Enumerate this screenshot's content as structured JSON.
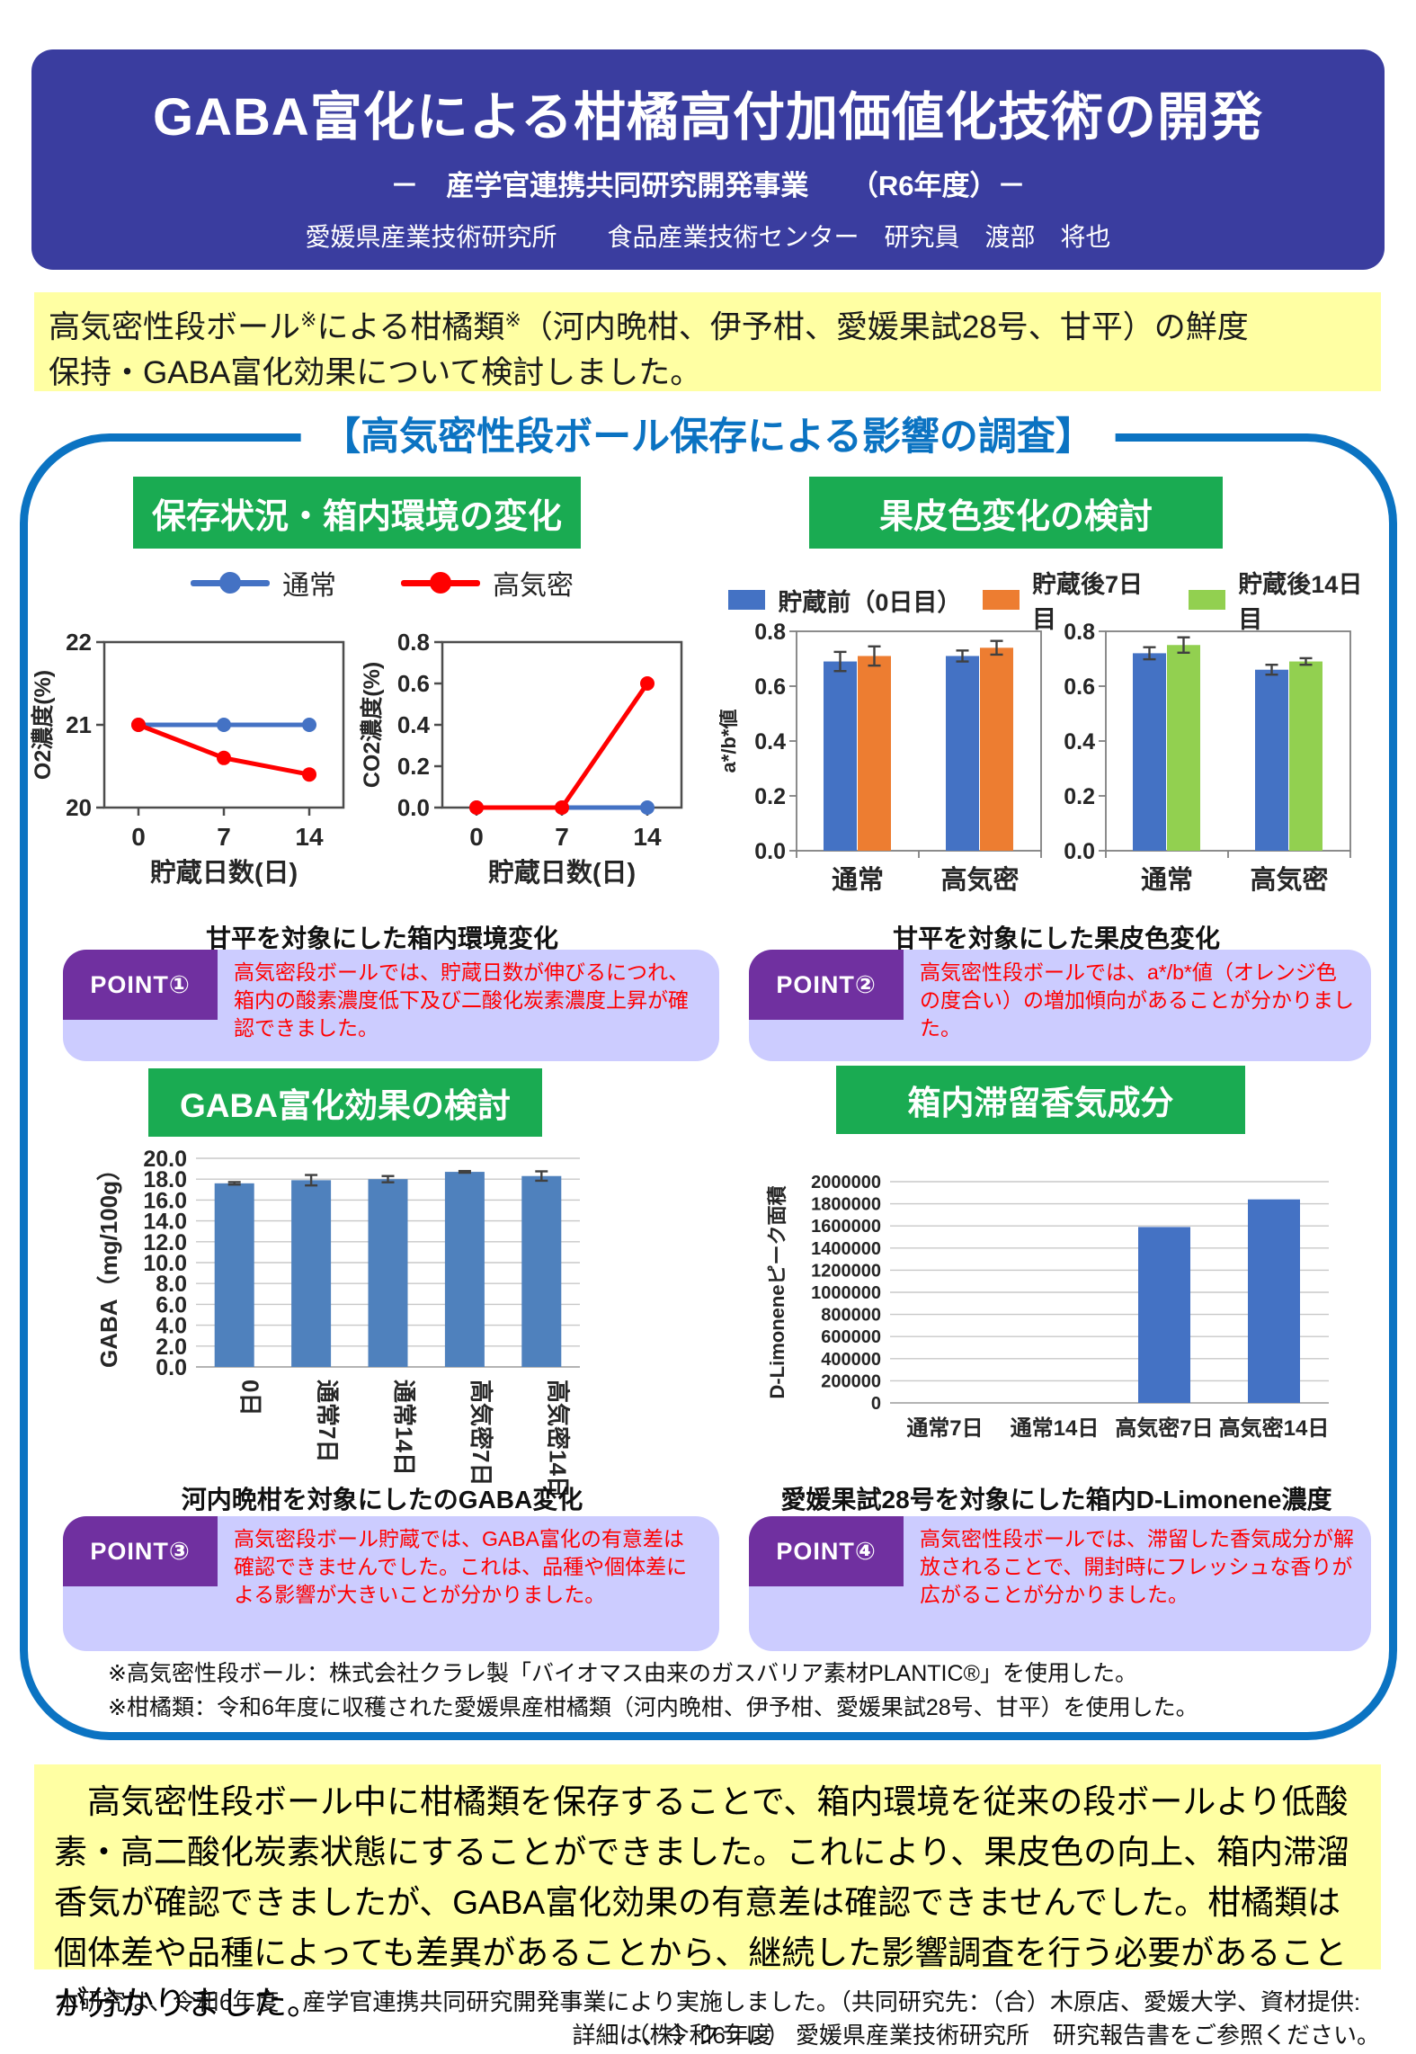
{
  "header": {
    "title": "GABA富化による柑橘高付加価値化技術の開発",
    "subtitle": "－　産学官連携共同研究開発事業　　（R6年度）－",
    "affiliation": "愛媛県産業技術研究所　　食品産業技術センター　研究員　渡部　将也",
    "bg_color": "#3A3D9F"
  },
  "intro": {
    "p1": "高気密性段ボール",
    "sup1": "※",
    "p2": "による柑橘類",
    "sup2": "※",
    "p3": "（河内晩柑、伊予柑、愛媛果試28号、甘平）の鮮度",
    "line2": "保持・GABA富化効果について検討しました。"
  },
  "survey": {
    "title": "【高気密性段ボール保存による影響の調査】",
    "border_color": "#0B73C2",
    "sections": {
      "env": {
        "header": "保存状況・箱内環境の変化",
        "caption": "甘平を対象にした箱内環境変化"
      },
      "peel": {
        "header": "果皮色変化の検討",
        "caption": "甘平を対象にした果皮色変化"
      },
      "gaba": {
        "header": "GABA富化効果の検討",
        "caption": "河内晩柑を対象にしたのGABA変化"
      },
      "aroma": {
        "header": "箱内滞留香気成分",
        "caption": "愛媛果試28号を対象にした箱内D-Limonene濃度"
      }
    },
    "line_legend": [
      {
        "label": "通常",
        "color": "#4472C4"
      },
      {
        "label": "高気密",
        "color": "#FF0000"
      }
    ],
    "bar_legend": [
      {
        "label": "貯蔵前（0日目）",
        "color": "#4472C4"
      },
      {
        "label": "貯蔵後7日目",
        "color": "#ED7D31"
      },
      {
        "label": "貯蔵後14日目",
        "color": "#92D050"
      }
    ],
    "points": [
      {
        "label": "POINT①",
        "text": "高気密段ボールでは、貯蔵日数が伸びるにつれ、箱内の酸素濃度低下及び二酸化炭素濃度上昇が確認できました。"
      },
      {
        "label": "POINT②",
        "text": "高気密性段ボールでは、a*/b*値（オレンジ色の度合い）の増加傾向があることが分かりました。"
      },
      {
        "label": "POINT③",
        "text": "高気密段ボール貯蔵では、GABA富化の有意差は確認できませんでした。これは、品種や個体差による影響が大きいことが分かりました。"
      },
      {
        "label": "POINT④",
        "text": "高気密性段ボールでは、滞留した香気成分が解放されることで、開封時にフレッシュな香りが広がることが分かりました。"
      }
    ]
  },
  "footnotes": [
    "※高気密性段ボール：株式会社クラレ製「バイオマス由来のガスバリア素材PLANTIC®」を使用した。",
    "※柑橘類：令和6年度に収穫された愛媛県産柑橘類（河内晩柑、伊予柑、愛媛果試28号、甘平）を使用した。"
  ],
  "summary": "　高気密性段ボール中に柑橘類を保存することで、箱内環境を従来の段ボールより低酸素・高二酸化炭素状態にすることができました。これにより、果皮色の向上、箱内滞溜香気が確認できましたが、GABA富化効果の有意差は確認できませんでした。柑橘類は個体差や品種によっても差異があることから、継続した影響調査を行う必要があることが分かりました。",
  "footer": {
    "line1": "本研究は、令和6年度　産学官連携共同研究開発事業により実施しました。（共同研究先：（合）木原店、愛媛大学、資材提供:（株）クラレ）",
    "line2": "詳細は、令和6年度　愛媛県産業技術研究所　研究報告書をご参照ください。"
  },
  "chart_data": [
    {
      "id": "o2",
      "type": "line",
      "x": [
        0,
        7,
        14
      ],
      "xdomain": [
        -2.8,
        16.8
      ],
      "xlabel": "貯蔵日数(日)",
      "ylabel": "O2濃度(%)",
      "ylim": [
        20,
        22
      ],
      "yticks": [
        "20",
        "21",
        "22"
      ],
      "grid": false,
      "series": [
        {
          "name": "通常",
          "color": "#4472C4",
          "values": [
            21,
            21,
            21
          ]
        },
        {
          "name": "高気密",
          "color": "#FF0000",
          "values": [
            21,
            20.6,
            20.4
          ]
        }
      ]
    },
    {
      "id": "co2",
      "type": "line",
      "x": [
        0,
        7,
        14
      ],
      "xdomain": [
        -2.8,
        16.8
      ],
      "xlabel": "貯蔵日数(日)",
      "ylabel": "CO2濃度(%)",
      "ylim": [
        0,
        0.8
      ],
      "yticks": [
        "0.0",
        "0.2",
        "0.4",
        "0.6",
        "0.8"
      ],
      "grid": false,
      "series": [
        {
          "name": "通常",
          "color": "#4472C4",
          "values": [
            0,
            0,
            0
          ]
        },
        {
          "name": "高気密",
          "color": "#FF0000",
          "values": [
            0,
            0,
            0.6
          ]
        }
      ]
    },
    {
      "id": "peel7",
      "type": "grouped-bar",
      "categories": [
        "通常",
        "高気密"
      ],
      "ylabel": "a*/b*値",
      "ylim": [
        0,
        0.8
      ],
      "yticks": [
        "0.0",
        "0.2",
        "0.4",
        "0.6",
        "0.8"
      ],
      "series": [
        {
          "name": "貯蔵前（0日目）",
          "color": "#4472C4",
          "values": [
            0.69,
            0.71
          ],
          "errors": [
            0.035,
            0.02
          ]
        },
        {
          "name": "貯蔵後7日目",
          "color": "#ED7D31",
          "values": [
            0.71,
            0.74
          ],
          "errors": [
            0.035,
            0.025
          ]
        }
      ]
    },
    {
      "id": "peel14",
      "type": "grouped-bar",
      "categories": [
        "通常",
        "高気密"
      ],
      "ylabel": "",
      "ylim": [
        0,
        0.8
      ],
      "yticks": [
        "0.0",
        "0.2",
        "0.4",
        "0.6",
        "0.8"
      ],
      "series": [
        {
          "name": "貯蔵前（0日目）",
          "color": "#4472C4",
          "values": [
            0.72,
            0.66
          ],
          "errors": [
            0.022,
            0.018
          ]
        },
        {
          "name": "貯蔵後14日目",
          "color": "#92D050",
          "values": [
            0.75,
            0.69
          ],
          "errors": [
            0.028,
            0.012
          ]
        }
      ]
    },
    {
      "id": "gaba",
      "type": "bar",
      "categories": [
        "0日",
        "通常7日",
        "通常14日",
        "高気密7日",
        "高気密14日"
      ],
      "values": [
        17.6,
        17.9,
        18.0,
        18.7,
        18.3
      ],
      "errors": [
        0.12,
        0.5,
        0.3,
        0.08,
        0.45
      ],
      "color": "#4F81BD",
      "ylabel": "GABA（mg/100g）",
      "ylim": [
        0,
        20
      ],
      "yticks": [
        "0.0",
        "2.0",
        "4.0",
        "6.0",
        "8.0",
        "10.0",
        "12.0",
        "14.0",
        "16.0",
        "18.0",
        "20.0"
      ],
      "grid": true,
      "rotate_x": true
    },
    {
      "id": "limonene",
      "type": "bar",
      "categories": [
        "通常7日",
        "通常14日",
        "高気密7日",
        "高気密14日"
      ],
      "values": [
        0,
        0,
        1590000,
        1840000
      ],
      "color": "#4472C4",
      "ylabel": "D-Limoneneピーク面積",
      "ylim": [
        0,
        2000000
      ],
      "yticks": [
        "0",
        "200000",
        "400000",
        "600000",
        "800000",
        "1000000",
        "1200000",
        "1400000",
        "1600000",
        "1800000",
        "2000000"
      ],
      "grid": true,
      "rotate_x": false
    }
  ]
}
